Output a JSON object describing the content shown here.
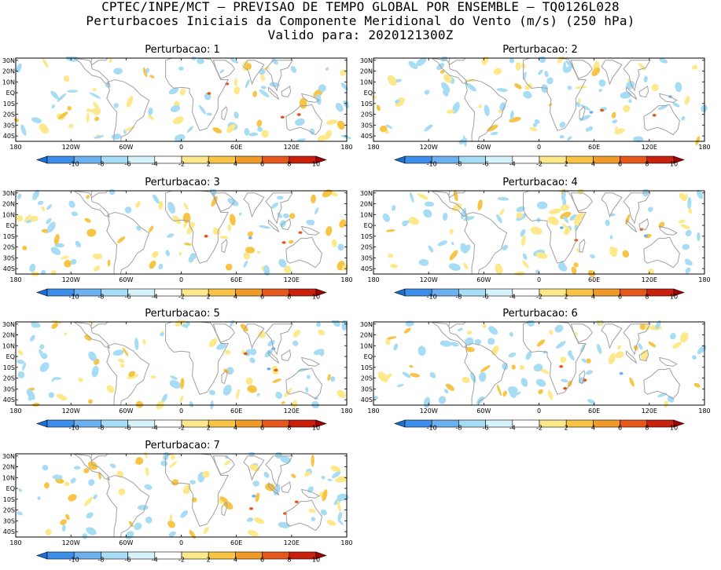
{
  "header": {
    "line1": "CPTEC/INPE/MCT – PREVISAO DE TEMPO GLOBAL POR ENSEMBLE – TQ0126L028",
    "line2": "Perturbacoes Iniciais da Componente Meridional do Vento (m/s) (250 hPa)",
    "line3": "Valido para: 2020121300Z"
  },
  "panels": [
    {
      "title": "Perturbacao: 1"
    },
    {
      "title": "Perturbacao: 2"
    },
    {
      "title": "Perturbacao: 3"
    },
    {
      "title": "Perturbacao: 4"
    },
    {
      "title": "Perturbacao: 5"
    },
    {
      "title": "Perturbacao: 6"
    },
    {
      "title": "Perturbacao: 7"
    }
  ],
  "map_axes": {
    "lat_labels": [
      "30N",
      "20N",
      "10N",
      "EQ",
      "10S",
      "20S",
      "30S",
      "40S"
    ],
    "lat_values": [
      30,
      20,
      10,
      0,
      -10,
      -20,
      -30,
      -40
    ],
    "lon_labels": [
      "180",
      "120W",
      "60W",
      "0",
      "60E",
      "120E",
      "180"
    ],
    "lon_values": [
      -180,
      -120,
      -60,
      0,
      60,
      120,
      180
    ],
    "lat_range": [
      -45,
      32
    ]
  },
  "colorbar": {
    "labels": [
      "-10",
      "-8",
      "-6",
      "-4",
      "-2",
      "2",
      "4",
      "6",
      "8",
      "10"
    ],
    "colors": [
      "#1e6ed6",
      "#3c8ee8",
      "#6cb0f0",
      "#a6dcf4",
      "#d6f2fa",
      "#ffffff",
      "#fde98c",
      "#f8c446",
      "#f19a2a",
      "#e5571a",
      "#c9200e",
      "#a00000"
    ]
  },
  "colors": {
    "land_outline": "#a0a0a0",
    "frame": "#000000",
    "positive_light": "#fde98c",
    "positive_mid": "#f8c446",
    "positive_strong": "#e5571a",
    "negative_light": "#a6dcf4",
    "negative_mid": "#6cb0f0"
  }
}
